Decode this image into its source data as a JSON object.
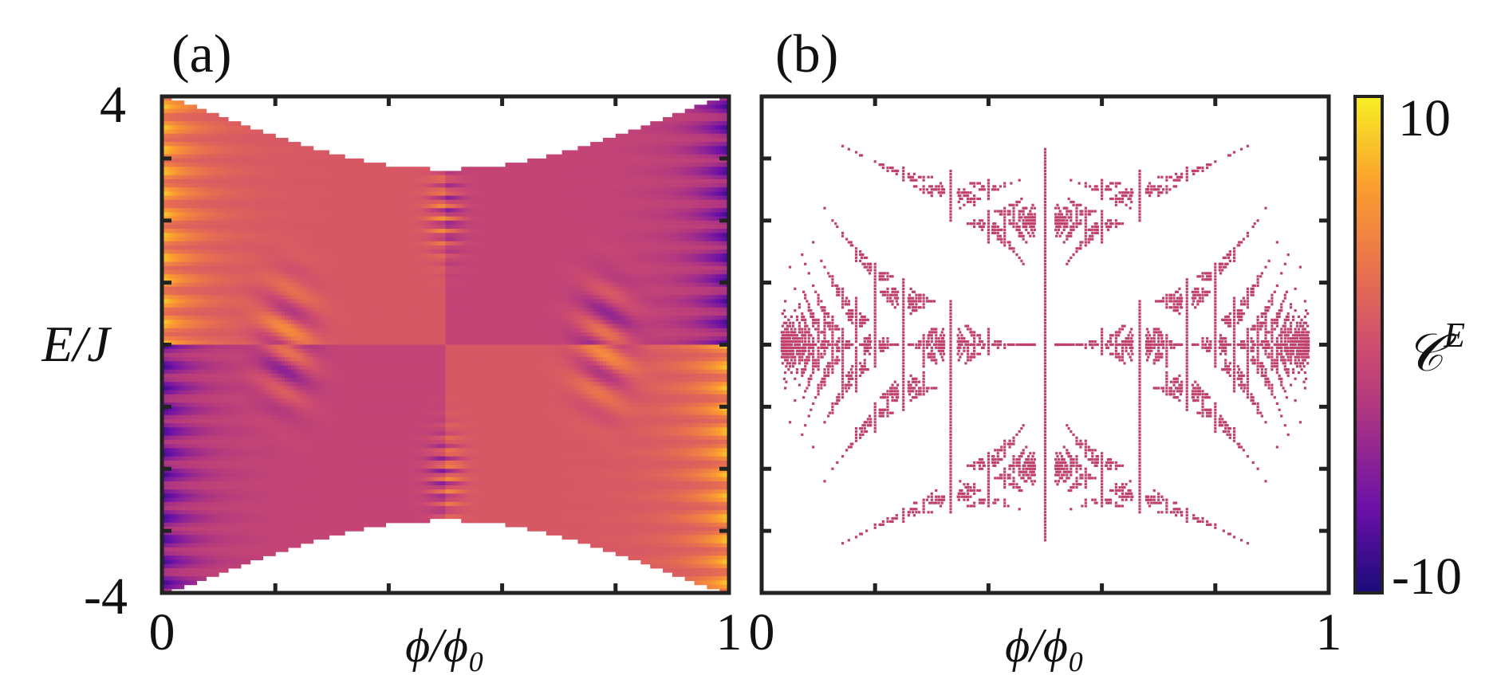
{
  "chart_data": [
    {
      "type": "heatmap",
      "panel_label": "(a)",
      "title": "",
      "xlabel": "ϕ/ϕ₀",
      "ylabel": "E/J",
      "xlim": [
        0,
        1
      ],
      "ylim": [
        -4,
        4
      ],
      "x_tick_labels": [
        "0",
        "1"
      ],
      "y_tick_labels": [
        "4",
        "-4"
      ],
      "x_minor_ticks": [
        0.2,
        0.4,
        0.6,
        0.8
      ],
      "y_minor_ticks": [
        -3,
        -2,
        -1,
        0,
        1,
        2,
        3
      ],
      "description": "Hofstadter-butterfly spectrum colored by energy-resolved Chern number C^E",
      "spectrum_edge_at_half_flux": 2.828,
      "value_range": [
        -10,
        10
      ]
    },
    {
      "type": "heatmap",
      "panel_label": "(b)",
      "title": "",
      "xlabel": "ϕ/ϕ₀",
      "ylabel": "",
      "xlim": [
        0,
        1
      ],
      "ylim": [
        -4,
        4
      ],
      "x_tick_labels": [
        "0",
        "1"
      ],
      "x_minor_ticks": [
        0.2,
        0.4,
        0.6,
        0.8
      ],
      "y_minor_ticks": [
        -3,
        -2,
        -1,
        0,
        1,
        2,
        3
      ],
      "description": "Hofstadter butterfly (band positions only)"
    }
  ],
  "colorbar": {
    "label": "𝒞",
    "label_sup": "E",
    "min": -10,
    "max": 10,
    "min_label": "-10",
    "max_label": "10",
    "stops": [
      "#1a0b7a",
      "#6b10a8",
      "#b2387f",
      "#cf4d6f",
      "#e9714e",
      "#fb9e2e",
      "#f6ef24"
    ]
  }
}
